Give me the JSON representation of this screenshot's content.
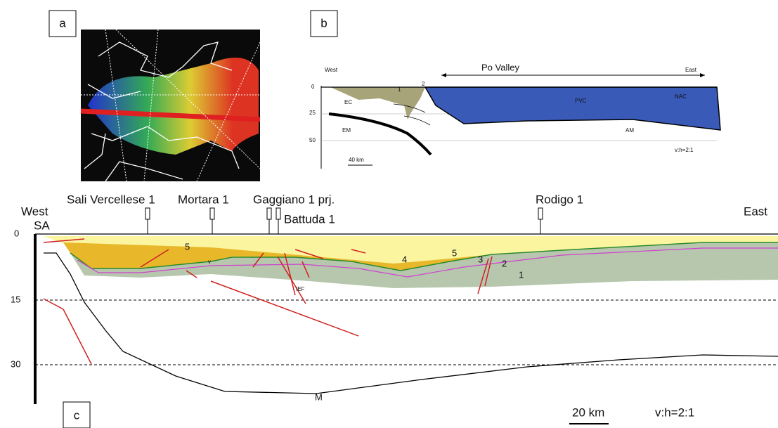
{
  "panel_a": {
    "label": "a"
  },
  "panel_b": {
    "label": "b",
    "west": "West",
    "valley": "Po Valley",
    "east": "East",
    "depth_labels": [
      "0",
      "25",
      "50"
    ],
    "units": [
      "EC",
      "EM",
      "1",
      "2",
      "PVC",
      "NAC",
      "AM"
    ],
    "scale": "40 km",
    "ratio": "v:h=2:1"
  },
  "panel_c": {
    "label": "c",
    "west": "West",
    "west_sub": "SA",
    "east": "East",
    "wells": [
      "Sali Vercellese 1",
      "Mortara 1",
      "Gaggiano 1 prj.",
      "Battuda 1",
      "Rodigo 1"
    ],
    "depth_labels": [
      "0",
      "15",
      "30"
    ],
    "units": [
      "5",
      "4",
      "5",
      "3",
      "2",
      "1",
      "v"
    ],
    "fault": "IEF",
    "moho": "M",
    "scale": "20 km",
    "ratio": "v:h=2:1"
  }
}
